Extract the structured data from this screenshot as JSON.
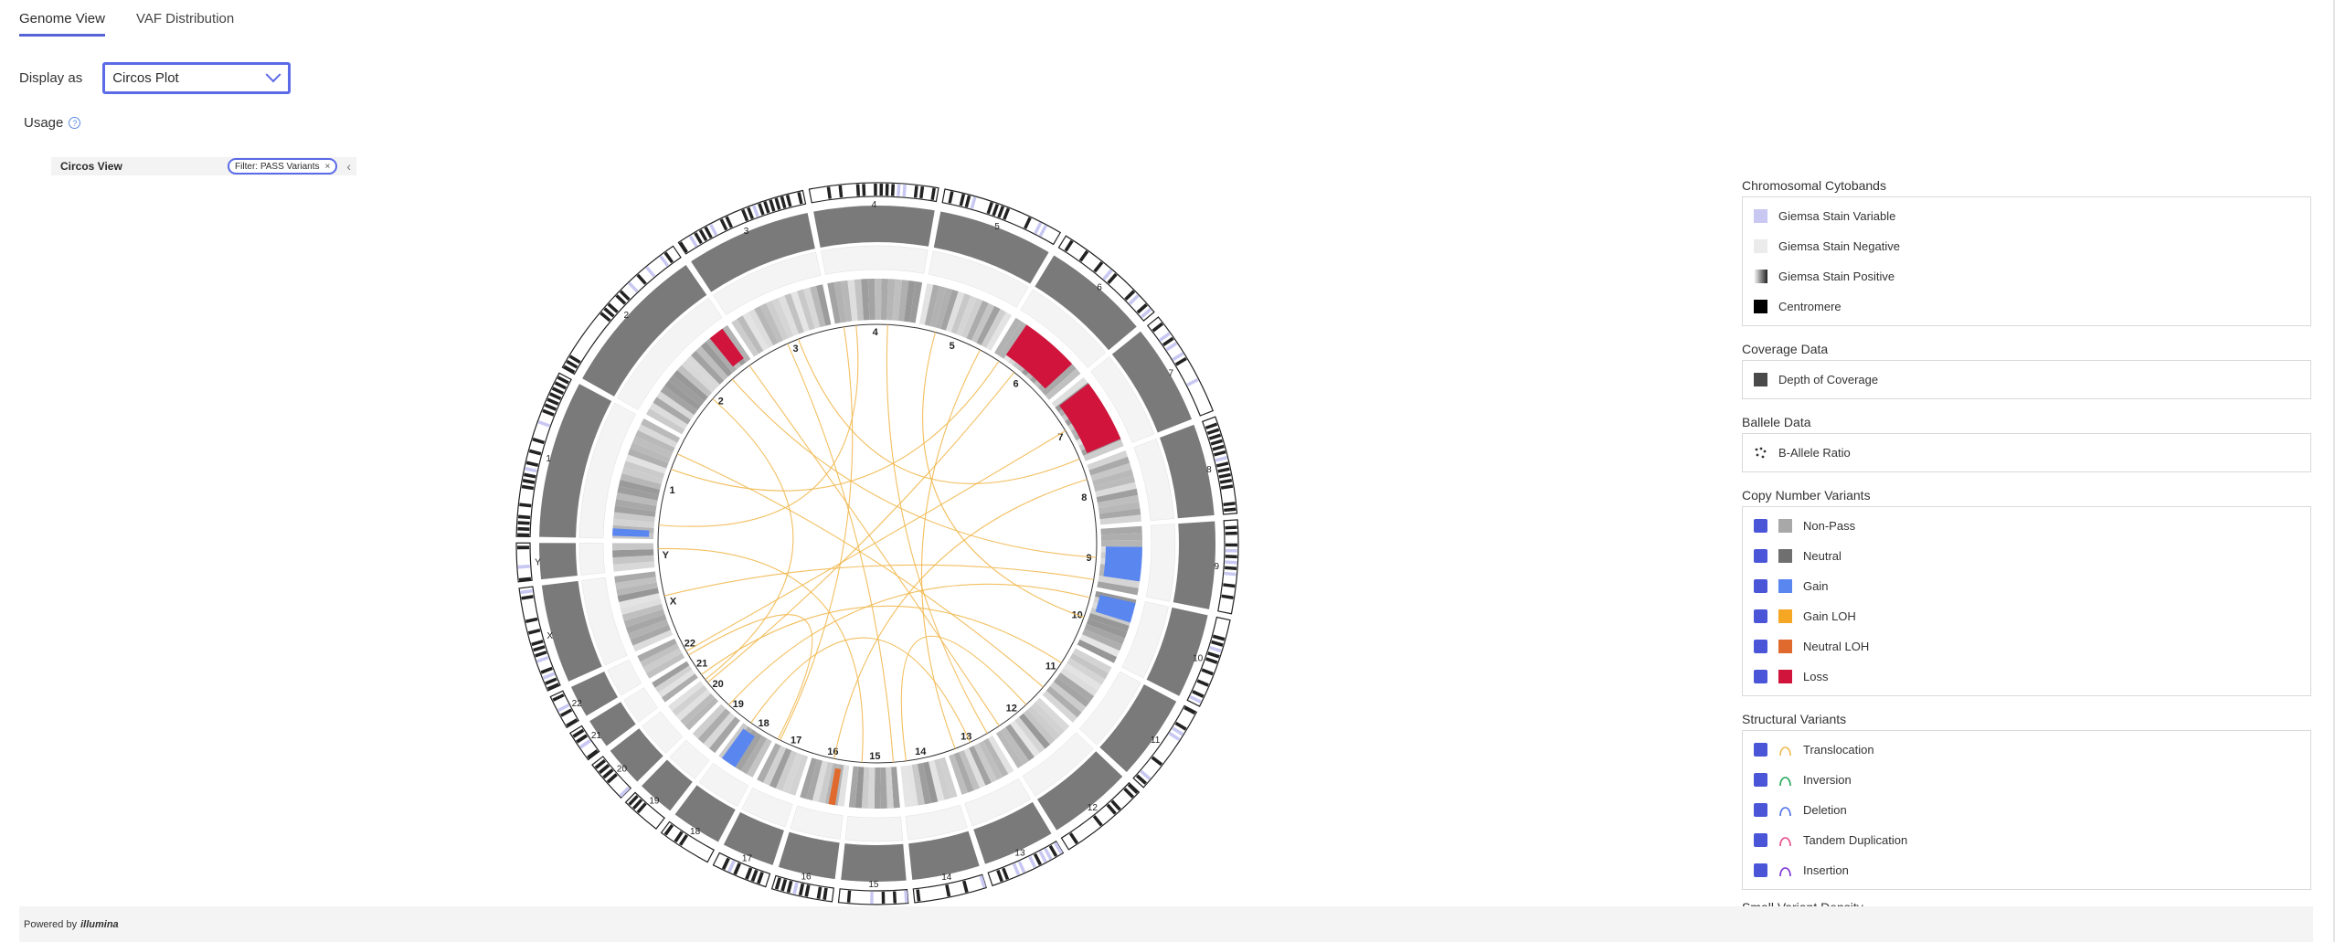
{
  "tabs": [
    {
      "label": "Genome View",
      "active": true
    },
    {
      "label": "VAF Distribution",
      "active": false
    }
  ],
  "display": {
    "label": "Display as",
    "value": "Circos Plot"
  },
  "usage": {
    "label": "Usage",
    "help_icon": "question-circle-icon"
  },
  "viewbar": {
    "title": "Circos View",
    "filter": "Filter: PASS Variants",
    "remove_icon": "close-icon",
    "collapse_icon": "chevron-left-icon"
  },
  "circos": {
    "chromosomes": [
      "1",
      "2",
      "3",
      "4",
      "5",
      "6",
      "7",
      "8",
      "9",
      "10",
      "11",
      "12",
      "13",
      "14",
      "15",
      "16",
      "17",
      "18",
      "19",
      "20",
      "21",
      "22",
      "X",
      "Y"
    ],
    "colors": {
      "loss": "#d0143c",
      "gain": "#5a86f0",
      "neutral_loh": "#e06a2e",
      "sv_translocation": "#f1b84f",
      "coverage": "#6b6b6b"
    }
  },
  "legend": {
    "cytobands": {
      "title": "Chromosomal Cytobands",
      "items": [
        {
          "label": "Giemsa Stain Variable",
          "color": "#c8c8f3"
        },
        {
          "label": "Giemsa Stain Negative",
          "color": "#ebebeb"
        },
        {
          "label": "Giemsa Stain Positive",
          "color": "#6b6b6b"
        },
        {
          "label": "Centromere",
          "color": "#000000"
        }
      ]
    },
    "coverage": {
      "title": "Coverage Data",
      "items": [
        {
          "label": "Depth of Coverage",
          "color": "#4a4a4a"
        }
      ]
    },
    "ballele": {
      "title": "Ballele Data",
      "items": [
        {
          "label": "B-Allele Ratio",
          "icon": "dots-icon"
        }
      ]
    },
    "cnv": {
      "title": "Copy Number Variants",
      "items": [
        {
          "label": "Non-Pass",
          "color": "#a8a8a8"
        },
        {
          "label": "Neutral",
          "color": "#6f6f6f"
        },
        {
          "label": "Gain",
          "color": "#5a86f0"
        },
        {
          "label": "Gain LOH",
          "color": "#f5a623"
        },
        {
          "label": "Neutral LOH",
          "color": "#e06a2e"
        },
        {
          "label": "Loss",
          "color": "#d0143c"
        }
      ]
    },
    "sv": {
      "title": "Structural Variants",
      "items": [
        {
          "label": "Translocation",
          "color": "#f1b84f"
        },
        {
          "label": "Inversion",
          "color": "#23a55a"
        },
        {
          "label": "Deletion",
          "color": "#4a6fe8"
        },
        {
          "label": "Tandem Duplication",
          "color": "#e84a8a"
        },
        {
          "label": "Insertion",
          "color": "#7a2fd6"
        }
      ]
    },
    "small_variant_title": "Small Variant Density"
  },
  "footer": {
    "powered_by": "Powered by",
    "brand": "illumina"
  }
}
